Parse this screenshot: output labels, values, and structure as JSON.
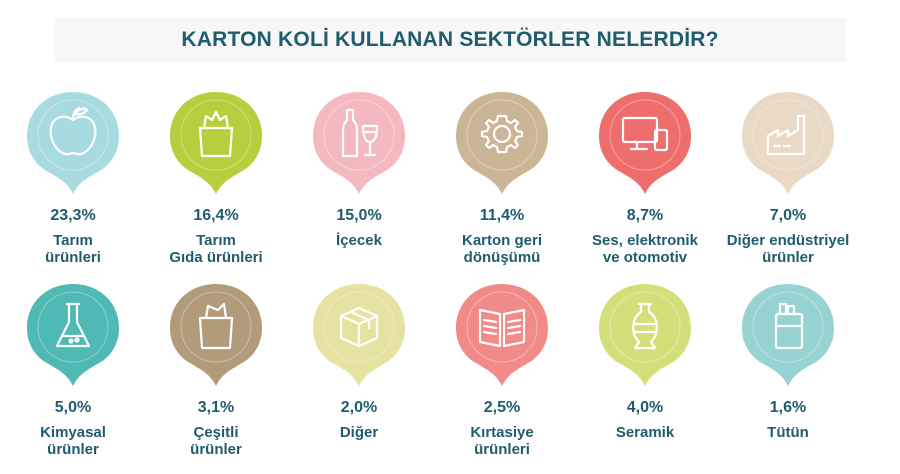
{
  "title": "KARTON KOLİ KULLANAN SEKTÖRLER NELERDİR?",
  "chart_data": {
    "type": "table",
    "categories": [
      "Tarım ürünleri",
      "Tarım Gıda ürünleri",
      "İçecek",
      "Karton geri dönüşümü",
      "Ses, elektronik ve otomotiv",
      "Diğer endüstriyel ürünler",
      "Kimyasal ürünler",
      "Çeşitli ürünler",
      "Diğer",
      "Kırtasiye ürünleri",
      "Seramik",
      "Tütün"
    ],
    "values": [
      23.3,
      16.4,
      15.0,
      11.4,
      8.7,
      7.0,
      5.0,
      3.1,
      2.0,
      2.5,
      4.0,
      1.6
    ]
  },
  "items": [
    {
      "pct": "23,3%",
      "line1": "Tarım",
      "line2": "ürünleri",
      "color": "#a8dbe0",
      "icon": "apple-icon"
    },
    {
      "pct": "16,4%",
      "line1": "Tarım",
      "line2": "Gıda ürünleri",
      "color": "#b5cf3e",
      "icon": "grocery-bag-icon"
    },
    {
      "pct": "15,0%",
      "line1": "İçecek",
      "line2": "",
      "color": "#f4b9bf",
      "icon": "wine-bottle-icon"
    },
    {
      "pct": "11,4%",
      "line1": "Karton geri",
      "line2": "dönüşümü",
      "color": "#cbb597",
      "icon": "gear-icon"
    },
    {
      "pct": "8,7%",
      "line1": "Ses, elektronik",
      "line2": "ve otomotiv",
      "color": "#ee6e6e",
      "icon": "devices-icon"
    },
    {
      "pct": "7,0%",
      "line1": "Diğer endüstriyel",
      "line2": "ürünler",
      "color": "#ead9c5",
      "icon": "factory-icon"
    },
    {
      "pct": "5,0%",
      "line1": "Kimyasal",
      "line2": "ürünler",
      "color": "#4fb9b4",
      "icon": "flask-icon"
    },
    {
      "pct": "3,1%",
      "line1": "Çeşitli",
      "line2": "ürünler",
      "color": "#b29b7b",
      "icon": "paper-bag-icon"
    },
    {
      "pct": "2,0%",
      "line1": "Diğer",
      "line2": "",
      "color": "#e5e2a2",
      "icon": "box-icon"
    },
    {
      "pct": "2,5%",
      "line1": "Kırtasiye",
      "line2": "ürünleri",
      "color": "#f18b89",
      "icon": "book-icon"
    },
    {
      "pct": "4,0%",
      "line1": "Seramik",
      "line2": "",
      "color": "#d5df7a",
      "icon": "vase-icon"
    },
    {
      "pct": "1,6%",
      "line1": "Tütün",
      "line2": "",
      "color": "#96d3d2",
      "icon": "cigarette-pack-icon"
    }
  ]
}
